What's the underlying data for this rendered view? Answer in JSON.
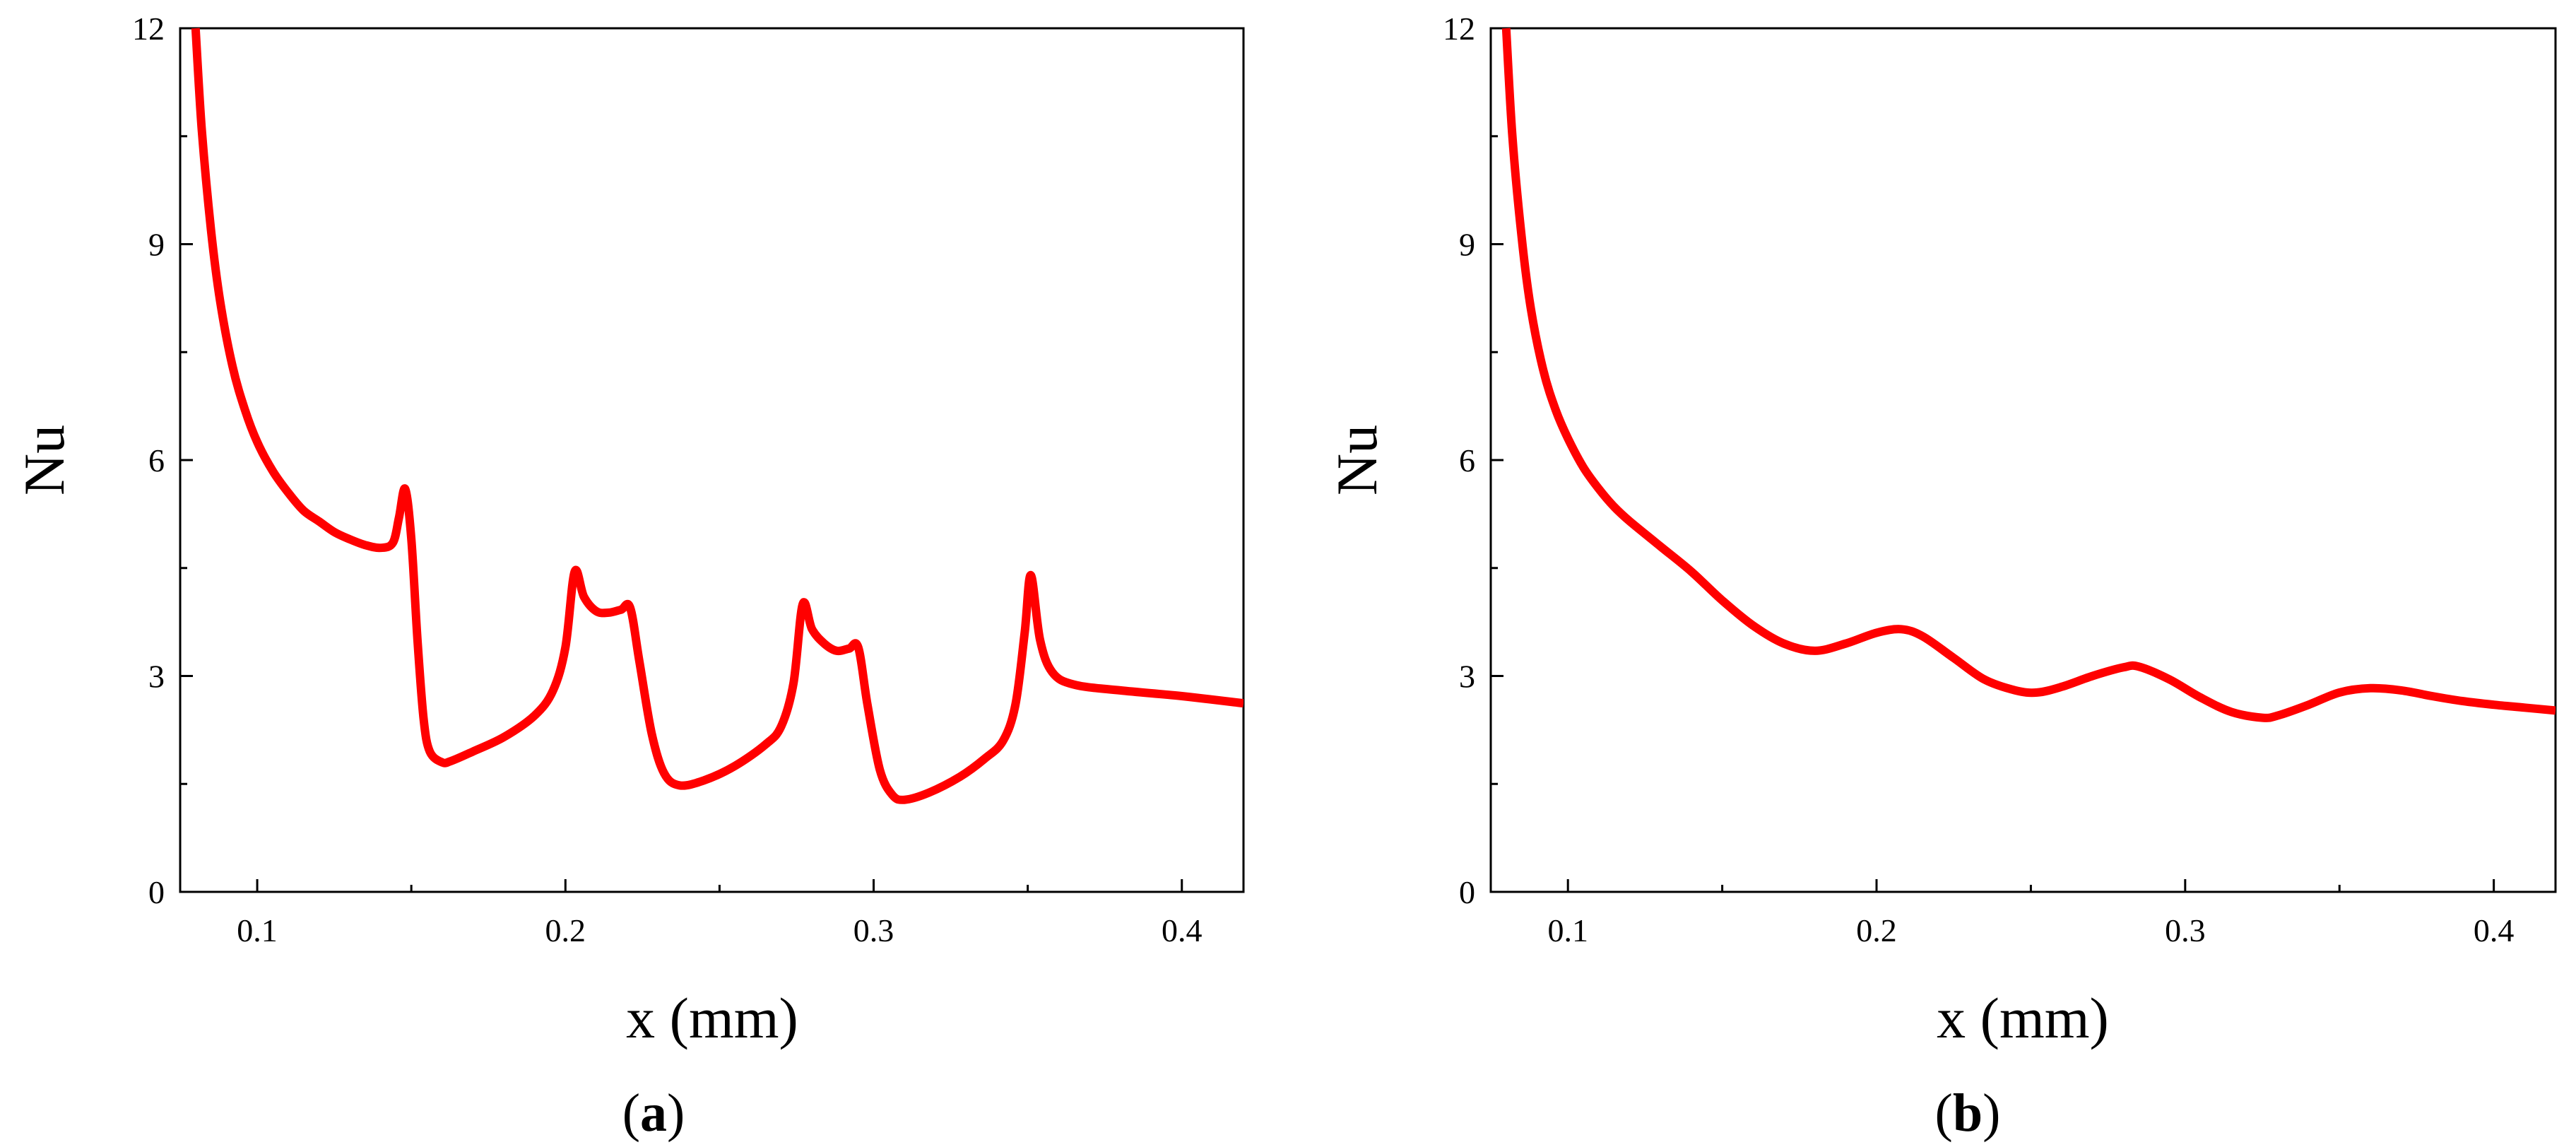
{
  "chart_data": [
    {
      "type": "line",
      "panel_label": "a",
      "xlabel": "x (mm)",
      "ylabel": "Nu",
      "xlim": [
        0.075,
        0.42
      ],
      "ylim": [
        0,
        12
      ],
      "xticks": [
        0.1,
        0.2,
        0.3,
        0.4
      ],
      "xtick_labels": [
        "0.1",
        "0.2",
        "0.3",
        "0.4"
      ],
      "yticks": [
        0,
        3,
        6,
        9,
        12
      ],
      "ytick_labels": [
        "0",
        "3",
        "6",
        "9",
        "12"
      ],
      "grid": false,
      "color": "#ff0000",
      "series": [
        {
          "x": [
            0.08,
            0.082,
            0.085,
            0.088,
            0.092,
            0.096,
            0.1,
            0.105,
            0.11,
            0.115,
            0.12,
            0.125,
            0.13,
            0.135,
            0.14,
            0.144,
            0.146,
            0.148,
            0.15,
            0.152,
            0.154,
            0.156,
            0.16,
            0.163,
            0.17,
            0.18,
            0.19,
            0.196,
            0.2,
            0.203,
            0.206,
            0.21,
            0.214,
            0.218,
            0.221,
            0.224,
            0.228,
            0.232,
            0.237,
            0.245,
            0.255,
            0.265,
            0.27,
            0.274,
            0.277,
            0.28,
            0.284,
            0.288,
            0.292,
            0.295,
            0.298,
            0.302,
            0.306,
            0.31,
            0.318,
            0.328,
            0.336,
            0.342,
            0.346,
            0.349,
            0.351,
            0.354,
            0.358,
            0.365,
            0.38,
            0.4,
            0.42
          ],
          "values": [
            12.0,
            10.6,
            9.2,
            8.2,
            7.3,
            6.7,
            6.25,
            5.85,
            5.55,
            5.3,
            5.15,
            5.0,
            4.9,
            4.82,
            4.78,
            4.85,
            5.2,
            5.6,
            4.9,
            3.5,
            2.4,
            1.95,
            1.8,
            1.82,
            1.95,
            2.15,
            2.45,
            2.8,
            3.4,
            4.45,
            4.1,
            3.9,
            3.88,
            3.92,
            3.95,
            3.2,
            2.2,
            1.65,
            1.48,
            1.55,
            1.75,
            2.05,
            2.3,
            2.9,
            4.0,
            3.65,
            3.45,
            3.35,
            3.38,
            3.4,
            2.6,
            1.7,
            1.35,
            1.28,
            1.38,
            1.6,
            1.85,
            2.1,
            2.6,
            3.6,
            4.4,
            3.5,
            3.05,
            2.88,
            2.8,
            2.72,
            2.62
          ]
        }
      ]
    },
    {
      "type": "line",
      "panel_label": "b",
      "xlabel": "x (mm)",
      "ylabel": "Nu",
      "xlim": [
        0.075,
        0.42
      ],
      "ylim": [
        0,
        12
      ],
      "xticks": [
        0.1,
        0.2,
        0.3,
        0.4
      ],
      "xtick_labels": [
        "0.1",
        "0.2",
        "0.3",
        "0.4"
      ],
      "yticks": [
        0,
        3,
        6,
        9,
        12
      ],
      "ytick_labels": [
        "0",
        "3",
        "6",
        "9",
        "12"
      ],
      "grid": false,
      "color": "#ff0000",
      "series": [
        {
          "x": [
            0.08,
            0.082,
            0.085,
            0.088,
            0.092,
            0.096,
            0.1,
            0.105,
            0.11,
            0.115,
            0.12,
            0.13,
            0.14,
            0.15,
            0.16,
            0.17,
            0.18,
            0.19,
            0.2,
            0.208,
            0.215,
            0.225,
            0.235,
            0.245,
            0.252,
            0.26,
            0.27,
            0.28,
            0.285,
            0.295,
            0.305,
            0.315,
            0.325,
            0.33,
            0.34,
            0.35,
            0.36,
            0.37,
            0.38,
            0.39,
            0.4,
            0.41,
            0.42
          ],
          "values": [
            12.0,
            10.5,
            9.1,
            8.1,
            7.25,
            6.7,
            6.3,
            5.9,
            5.6,
            5.35,
            5.15,
            4.8,
            4.45,
            4.05,
            3.7,
            3.45,
            3.35,
            3.45,
            3.6,
            3.65,
            3.55,
            3.25,
            2.95,
            2.8,
            2.77,
            2.85,
            3.0,
            3.12,
            3.13,
            2.95,
            2.7,
            2.5,
            2.42,
            2.45,
            2.6,
            2.77,
            2.83,
            2.8,
            2.72,
            2.65,
            2.6,
            2.56,
            2.52
          ]
        }
      ]
    }
  ]
}
